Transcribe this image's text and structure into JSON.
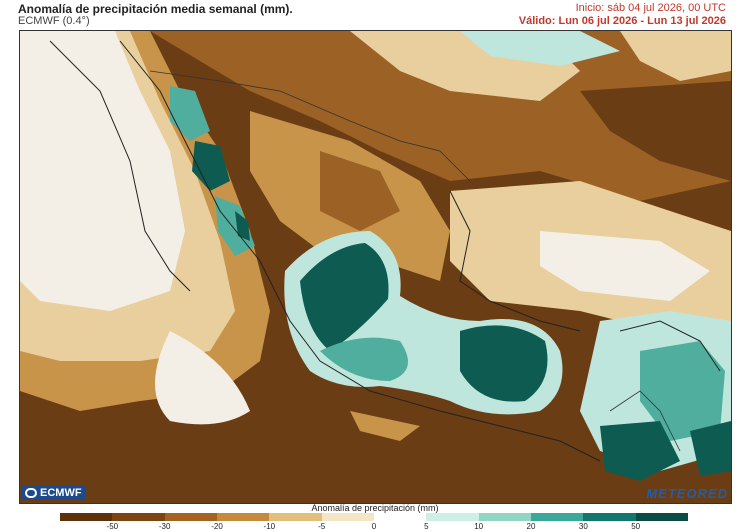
{
  "header": {
    "title": "Anomalía de precipitación media semanal (mm).",
    "model": "ECMWF (0.4°)",
    "init": "Inicio:  sáb 04 jul 2026, 00 UTC",
    "valid": "Válido: Lun 06 jul 2026 - Lun 13 jul 2026"
  },
  "logos": {
    "left": "ECMWF",
    "right": "METEORED"
  },
  "colorbar": {
    "title": "Anomalía de precipitación (mm)",
    "ticks": [
      "-50",
      "-30",
      "-20",
      "-10",
      "-5",
      "0",
      "5",
      "10",
      "20",
      "30",
      "50"
    ],
    "colors": [
      "#5e3209",
      "#7d4412",
      "#a3641f",
      "#c68a3c",
      "#e2c07c",
      "#f4e6c4",
      "#ffffff",
      "#cfeee6",
      "#8fd6c5",
      "#3ba99a",
      "#12776c",
      "#0a4d45"
    ]
  },
  "map_colors": {
    "dry_strong": "#6b3d14",
    "dry_mid": "#9b6125",
    "dry_light": "#c8944a",
    "dry_pale": "#e8cf9d",
    "neutral": "#f4efe6",
    "wet_light": "#bfe6dc",
    "wet_mid": "#4fae9d",
    "wet_strong": "#0e5b52"
  }
}
